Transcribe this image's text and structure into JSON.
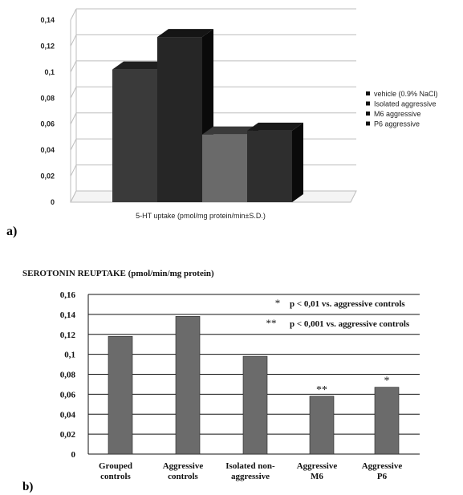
{
  "panel_labels": {
    "a": "a)",
    "b": "b)"
  },
  "colors": {
    "vehicle": "#3a3a3a",
    "isolated_aggressive": "#262626",
    "m6_aggressive": "#6a6a6a",
    "p6_aggressive": "#2e2e2e",
    "panel_b_bar": "#6b6b6b"
  },
  "chart_data": [
    {
      "type": "bar",
      "style": "3d",
      "xlabel": "5-HT uptake (pmol/mg protein/min±S.D.)",
      "ylim": [
        0,
        0.14
      ],
      "yticks": [
        "0",
        "0,02",
        "0,04",
        "0,06",
        "0,08",
        "0,1",
        "0,12",
        "0,14"
      ],
      "grid": true,
      "legend_position": "right",
      "series": [
        {
          "name": "vehicle (0.9% NaCl)",
          "values": [
            0.102
          ]
        },
        {
          "name": "Isolated aggressive",
          "values": [
            0.127
          ]
        },
        {
          "name": "M6 aggressive",
          "values": [
            0.052
          ]
        },
        {
          "name": "P6 aggressive",
          "values": [
            0.055
          ]
        }
      ]
    },
    {
      "type": "bar",
      "title": "SEROTONIN REUPTAKE (pmol/min/mg protein)",
      "ylim": [
        0,
        0.16
      ],
      "yticks": [
        "0",
        "0,02",
        "0,04",
        "0,06",
        "0,08",
        "0,1",
        "0,12",
        "0,14",
        "0,16"
      ],
      "grid": true,
      "categories": [
        [
          "Grouped",
          "controls"
        ],
        [
          "Aggressive",
          "controls"
        ],
        [
          "Isolated non-",
          "aggressive"
        ],
        [
          "Aggressive",
          "M6"
        ],
        [
          "Aggressive",
          "P6"
        ]
      ],
      "values": [
        0.118,
        0.138,
        0.098,
        0.058,
        0.067
      ],
      "significance": [
        "",
        "",
        "",
        "**",
        "*"
      ],
      "annotations": [
        {
          "symbol": "*",
          "text": "p < 0,01  vs. aggressive controls"
        },
        {
          "symbol": "**",
          "text": "p < 0,001  vs. aggressive controls"
        }
      ]
    }
  ]
}
